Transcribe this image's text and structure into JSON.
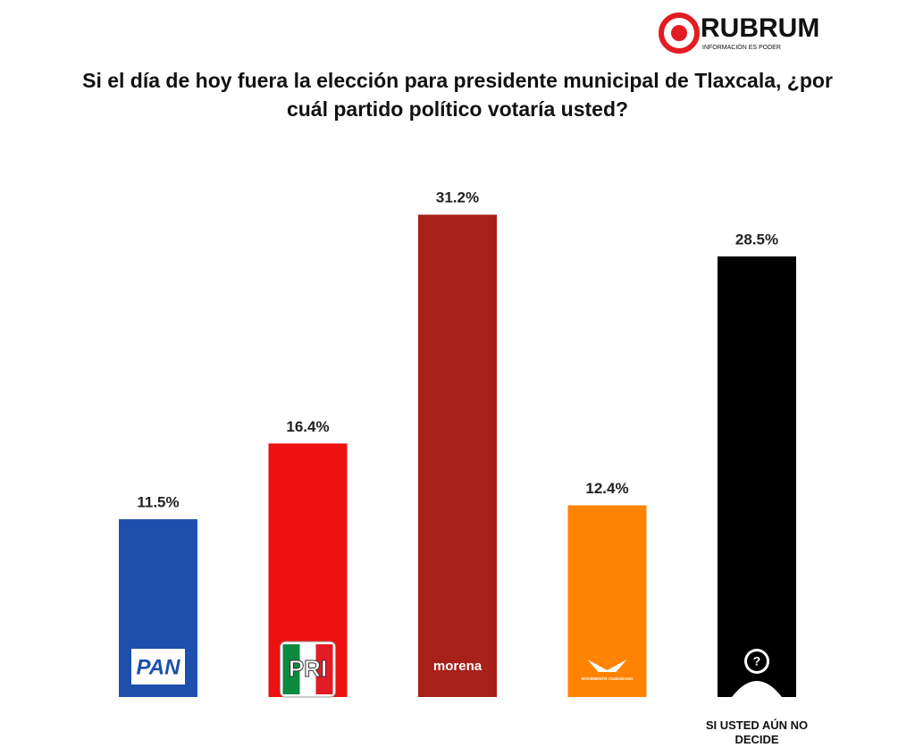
{
  "chart_data": {
    "type": "bar",
    "logo": "RUBRUM",
    "tagline": "INFORMACIÓN ES PODER",
    "title": "Si el día de hoy fuera la elección para presidente municipal de Tlaxcala, ¿por cuál partido político votaría usted?",
    "categories": [
      "PAN",
      "PRI",
      "morena",
      "MOVIMIENTO CIUDADANO",
      "SI USTED AÚN NO DECIDE"
    ],
    "values": [
      11.5,
      16.4,
      31.2,
      12.4,
      28.5
    ],
    "value_labels": [
      "11.5%",
      "16.4%",
      "31.2%",
      "12.4%",
      "28.5%"
    ],
    "colors": [
      "#1d4fae",
      "#ee1111",
      "#a8201a",
      "#ff8300",
      "#000000"
    ]
  }
}
